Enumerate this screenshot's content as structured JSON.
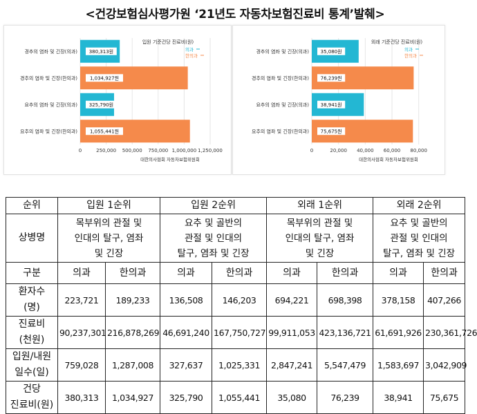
{
  "title": "<건강보험심사평가원 ‘21년도 자동차보험진료비 통계’발췌>",
  "colors": {
    "medicine": "#23b7d3",
    "korean_medicine": "#f58a4b",
    "grid": "#e6e6e6"
  },
  "chart_data": [
    {
      "type": "bar",
      "orientation": "horizontal",
      "title": "입원 기준건당 진료비(원)",
      "categories": [
        "경추의 염좌 및 긴장(의과)",
        "경추의 염좌 및 긴장(한의과)",
        "요추의 염좌 및 긴장(의과)",
        "요추의 염좌 및 긴장(한의과)"
      ],
      "values": [
        380313,
        1034927,
        325790,
        1055441
      ],
      "value_labels": [
        "380,313원",
        "1,034,927원",
        "325,790원",
        "1,055,441원"
      ],
      "bar_series": [
        "medicine",
        "korean_medicine",
        "medicine",
        "korean_medicine"
      ],
      "legend": [
        "의과",
        "한의과"
      ],
      "legend_position": "top-right",
      "xlim": [
        0,
        1250000
      ],
      "xticks": [
        0,
        250000,
        500000,
        750000,
        1000000,
        1250000
      ],
      "xtick_labels": [
        "0",
        "250,000",
        "500,000",
        "750,000",
        "1,000,000",
        "1,250,000"
      ],
      "source": "대한의사협회 자동차보험위원회",
      "grid": true
    },
    {
      "type": "bar",
      "orientation": "horizontal",
      "title": "외래 기준건당 진료비(원)",
      "categories": [
        "경추의 염좌 및 긴장(의과)",
        "경추의 염좌 및 긴장(한의과)",
        "요추의 염좌 및 긴장(의과)",
        "요추의 염좌 및 긴장(한의과)"
      ],
      "values": [
        35080,
        76239,
        38941,
        75675
      ],
      "value_labels": [
        "35,080원",
        "76,239원",
        "38,941원",
        "75,675원"
      ],
      "bar_series": [
        "medicine",
        "korean_medicine",
        "medicine",
        "korean_medicine"
      ],
      "legend": [
        "의과",
        "한의과"
      ],
      "legend_position": "top-right",
      "xlim": [
        0,
        90000
      ],
      "xticks": [
        0,
        20000,
        40000,
        60000,
        80000
      ],
      "xtick_labels": [
        "0",
        "20,000",
        "40,000",
        "60,000",
        "80,000"
      ],
      "source": "대한의사협회 자동차보험위원회",
      "grid": true
    }
  ],
  "table": {
    "rank_header": "순위",
    "groups": [
      "입원 1순위",
      "입원 2순위",
      "외래 1순위",
      "외래 2순위"
    ],
    "disease_header": "상병명",
    "diseases": [
      [
        "목부위의 관절 및",
        "인대의 탈구, 염좌",
        "및 긴장"
      ],
      [
        "요추 및 골반의",
        "관절 및 인대의",
        "탈구, 염좌 및 긴장"
      ],
      [
        "목부위의 관절 및",
        "인대의 탈구, 염좌",
        "및 긴장"
      ],
      [
        "요추 및 골반의",
        "관절 및 인대의",
        "탈구, 염좌 및 긴장"
      ]
    ],
    "category_header": "구분",
    "category_labels": [
      "의과",
      "한의과"
    ],
    "rows": [
      {
        "label": [
          "환자수",
          "(명)"
        ],
        "values": [
          "223,721",
          "189,233",
          "136,508",
          "146,203",
          "694,221",
          "698,398",
          "378,158",
          "407,266"
        ]
      },
      {
        "label": [
          "진료비",
          "(천원)"
        ],
        "values": [
          "90,237,301",
          "216,878,269",
          "46,691,240",
          "167,750,727",
          "99,911,053",
          "423,136,721",
          "61,691,926",
          "230,361,726"
        ]
      },
      {
        "label": [
          "입원/내원",
          "일수(일)"
        ],
        "values": [
          "759,028",
          "1,287,008",
          "327,637",
          "1,025,331",
          "2,847,241",
          "5,547,479",
          "1,583,697",
          "3,042,909"
        ]
      },
      {
        "label": [
          "건당",
          "진료비(원)"
        ],
        "values": [
          "380,313",
          "1,034,927",
          "325,790",
          "1,055,441",
          "35,080",
          "76,239",
          "38,941",
          "75,675"
        ]
      }
    ]
  }
}
